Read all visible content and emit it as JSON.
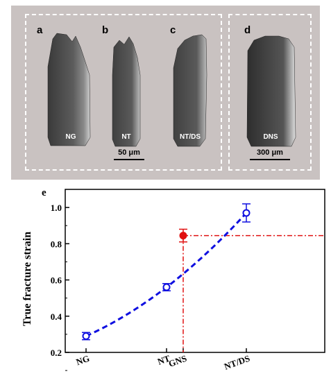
{
  "sem_panels": {
    "letters": [
      "a",
      "b",
      "c",
      "d"
    ],
    "labels": [
      "NG",
      "NT",
      "NT/DS",
      "DNS"
    ],
    "scalebar_small": "50 μm",
    "scalebar_large": "300 μm",
    "colors": {
      "background": "#c9c2c1",
      "sample_gray": "#555555",
      "dash": "#ffffff"
    }
  },
  "chart_data": {
    "type": "scatter",
    "panel_letter": "e",
    "title": "",
    "xlabel": "",
    "ylabel": "True fracture strain",
    "categories": [
      "NG",
      "NT",
      "GNS",
      "NT/DS"
    ],
    "ylim": [
      0.2,
      1.1
    ],
    "yticks": [
      "0.2",
      "0.4",
      "0.6",
      "0.8",
      "1.0"
    ],
    "series": [
      {
        "color": "#1010e0",
        "marker": "open-circle",
        "fit_line": "dashed",
        "points": [
          {
            "x": "NG",
            "y": 0.29,
            "err": 0.02
          },
          {
            "x": "NT",
            "y": 0.56,
            "err": 0.02
          },
          {
            "x": "NT/DS",
            "y": 0.97,
            "err": 0.05
          }
        ]
      },
      {
        "color": "#e01010",
        "marker": "filled-circle",
        "guide_lines": "dash-dot",
        "points": [
          {
            "x": "GNS",
            "y": 0.845,
            "err": 0.035
          }
        ]
      }
    ]
  }
}
